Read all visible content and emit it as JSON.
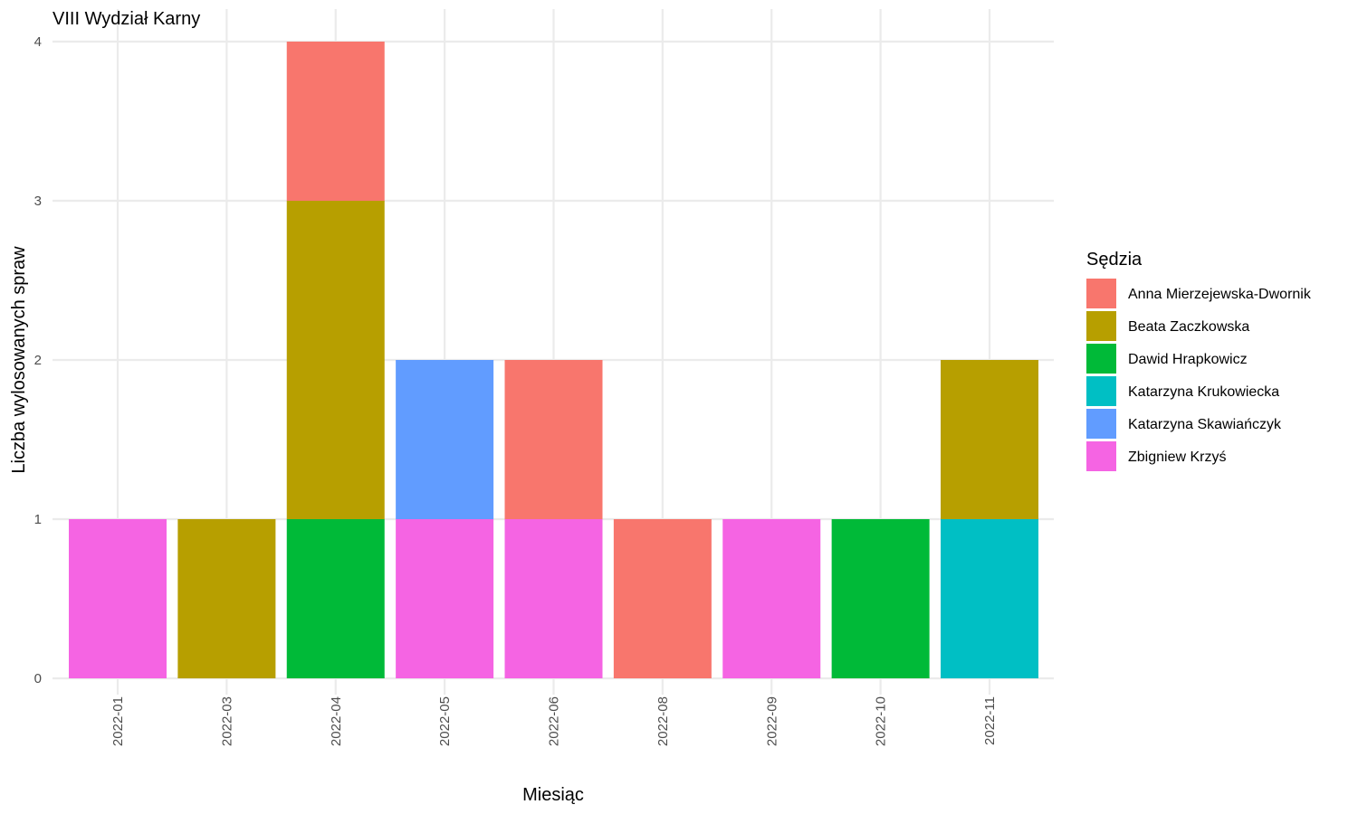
{
  "chart_data": {
    "type": "bar",
    "stacked": true,
    "title": "VIII Wydział Karny",
    "xlabel": "Miesiąc",
    "ylabel": "Liczba wylosowanych spraw",
    "ylim": [
      0,
      4
    ],
    "y_ticks": [
      "0",
      "1",
      "2",
      "3",
      "4"
    ],
    "categories": [
      "2022-01",
      "2022-03",
      "2022-04",
      "2022-05",
      "2022-06",
      "2022-08",
      "2022-09",
      "2022-10",
      "2022-11"
    ],
    "legend_title": "Sędzia",
    "legend_position": "right",
    "grid": true,
    "series": [
      {
        "name": "Anna Mierzejewska-Dwornik",
        "color": "#F8766D",
        "values": [
          0,
          0,
          1,
          0,
          1,
          1,
          0,
          0,
          0
        ]
      },
      {
        "name": "Beata Zaczkowska",
        "color": "#B79F00",
        "values": [
          0,
          1,
          2,
          0,
          0,
          0,
          0,
          0,
          1
        ]
      },
      {
        "name": "Dawid Hrapkowicz",
        "color": "#00BA38",
        "values": [
          0,
          0,
          1,
          0,
          0,
          0,
          0,
          1,
          0
        ]
      },
      {
        "name": "Katarzyna Krukowiecka",
        "color": "#00BFC4",
        "values": [
          0,
          0,
          0,
          0,
          0,
          0,
          0,
          0,
          1
        ]
      },
      {
        "name": "Katarzyna Skawiańczyk",
        "color": "#619CFF",
        "values": [
          0,
          0,
          0,
          1,
          0,
          0,
          0,
          0,
          0
        ]
      },
      {
        "name": "Zbigniew Krzyś",
        "color": "#F564E3",
        "values": [
          1,
          0,
          0,
          1,
          1,
          0,
          1,
          0,
          0
        ]
      }
    ]
  }
}
